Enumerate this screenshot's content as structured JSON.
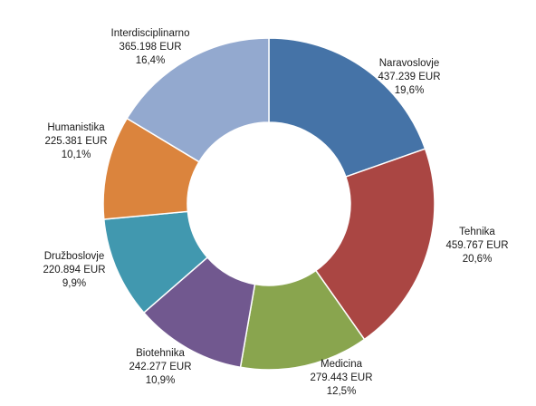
{
  "chart_data": {
    "type": "pie",
    "variant": "donut",
    "title": "",
    "legend": "none",
    "slices": [
      {
        "category": "Naravoslovje",
        "value": 437239,
        "value_label": "437.239 EUR",
        "percent_label": "19,6%",
        "color": "#4573a7"
      },
      {
        "category": "Tehnika",
        "value": 459767,
        "value_label": "459.767 EUR",
        "percent_label": "20,6%",
        "color": "#aa4643"
      },
      {
        "category": "Medicina",
        "value": 279443,
        "value_label": "279.443 EUR",
        "percent_label": "12,5%",
        "color": "#89a54e"
      },
      {
        "category": "Biotehnika",
        "value": 242277,
        "value_label": "242.277 EUR",
        "percent_label": "10,9%",
        "color": "#71588f"
      },
      {
        "category": "Družboslovje",
        "value": 220894,
        "value_label": "220.894 EUR",
        "percent_label": "9,9%",
        "color": "#4198af"
      },
      {
        "category": "Humanistika",
        "value": 225381,
        "value_label": "225.381 EUR",
        "percent_label": "10,1%",
        "color": "#db843d"
      },
      {
        "category": "Interdisciplinarno",
        "value": 365198,
        "value_label": "365.198 EUR",
        "percent_label": "16,4%",
        "color": "#93a9cf"
      }
    ]
  }
}
